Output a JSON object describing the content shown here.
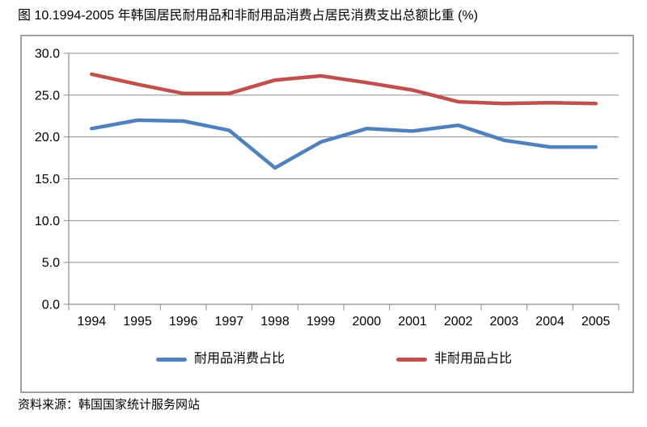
{
  "title": "图 10.1994-2005 年韩国居民耐用品和非耐用品消费占居民消费支出总额比重 (%)",
  "source_note": "资料来源：韩国国家统计服务网站",
  "colors": {
    "durable_line": "#4F81BD",
    "nondurable_line": "#C0504D",
    "grid": "#8C8C8C",
    "axis": "#8C8C8C",
    "chart_border": "#A3A3A3",
    "text": "#000000"
  },
  "legend": {
    "durable_label": "耐用品消费占比",
    "nondurable_label": "非耐用品占比"
  },
  "chart_data": {
    "type": "line",
    "title": "图 10.1994-2005 年韩国居民耐用品和非耐用品消费占居民消费支出总额比重 (%)",
    "categories": [
      "1994",
      "1995",
      "1996",
      "1997",
      "1998",
      "1999",
      "2000",
      "2001",
      "2002",
      "2003",
      "2004",
      "2005"
    ],
    "series": [
      {
        "name": "耐用品消费占比",
        "color": "#4F81BD",
        "values": [
          21.0,
          22.0,
          21.9,
          20.8,
          16.3,
          19.4,
          21.0,
          20.7,
          21.4,
          19.6,
          18.8,
          18.8
        ]
      },
      {
        "name": "非耐用品占比",
        "color": "#C0504D",
        "values": [
          27.5,
          26.3,
          25.2,
          25.2,
          26.8,
          27.3,
          26.5,
          25.6,
          24.2,
          24.0,
          24.1,
          24.0
        ]
      }
    ],
    "xlabel": "",
    "ylabel": "",
    "ylim": [
      0,
      30
    ],
    "ytick_step": 5,
    "ytick_decimals": 1,
    "grid": true,
    "legend_position": "bottom"
  }
}
